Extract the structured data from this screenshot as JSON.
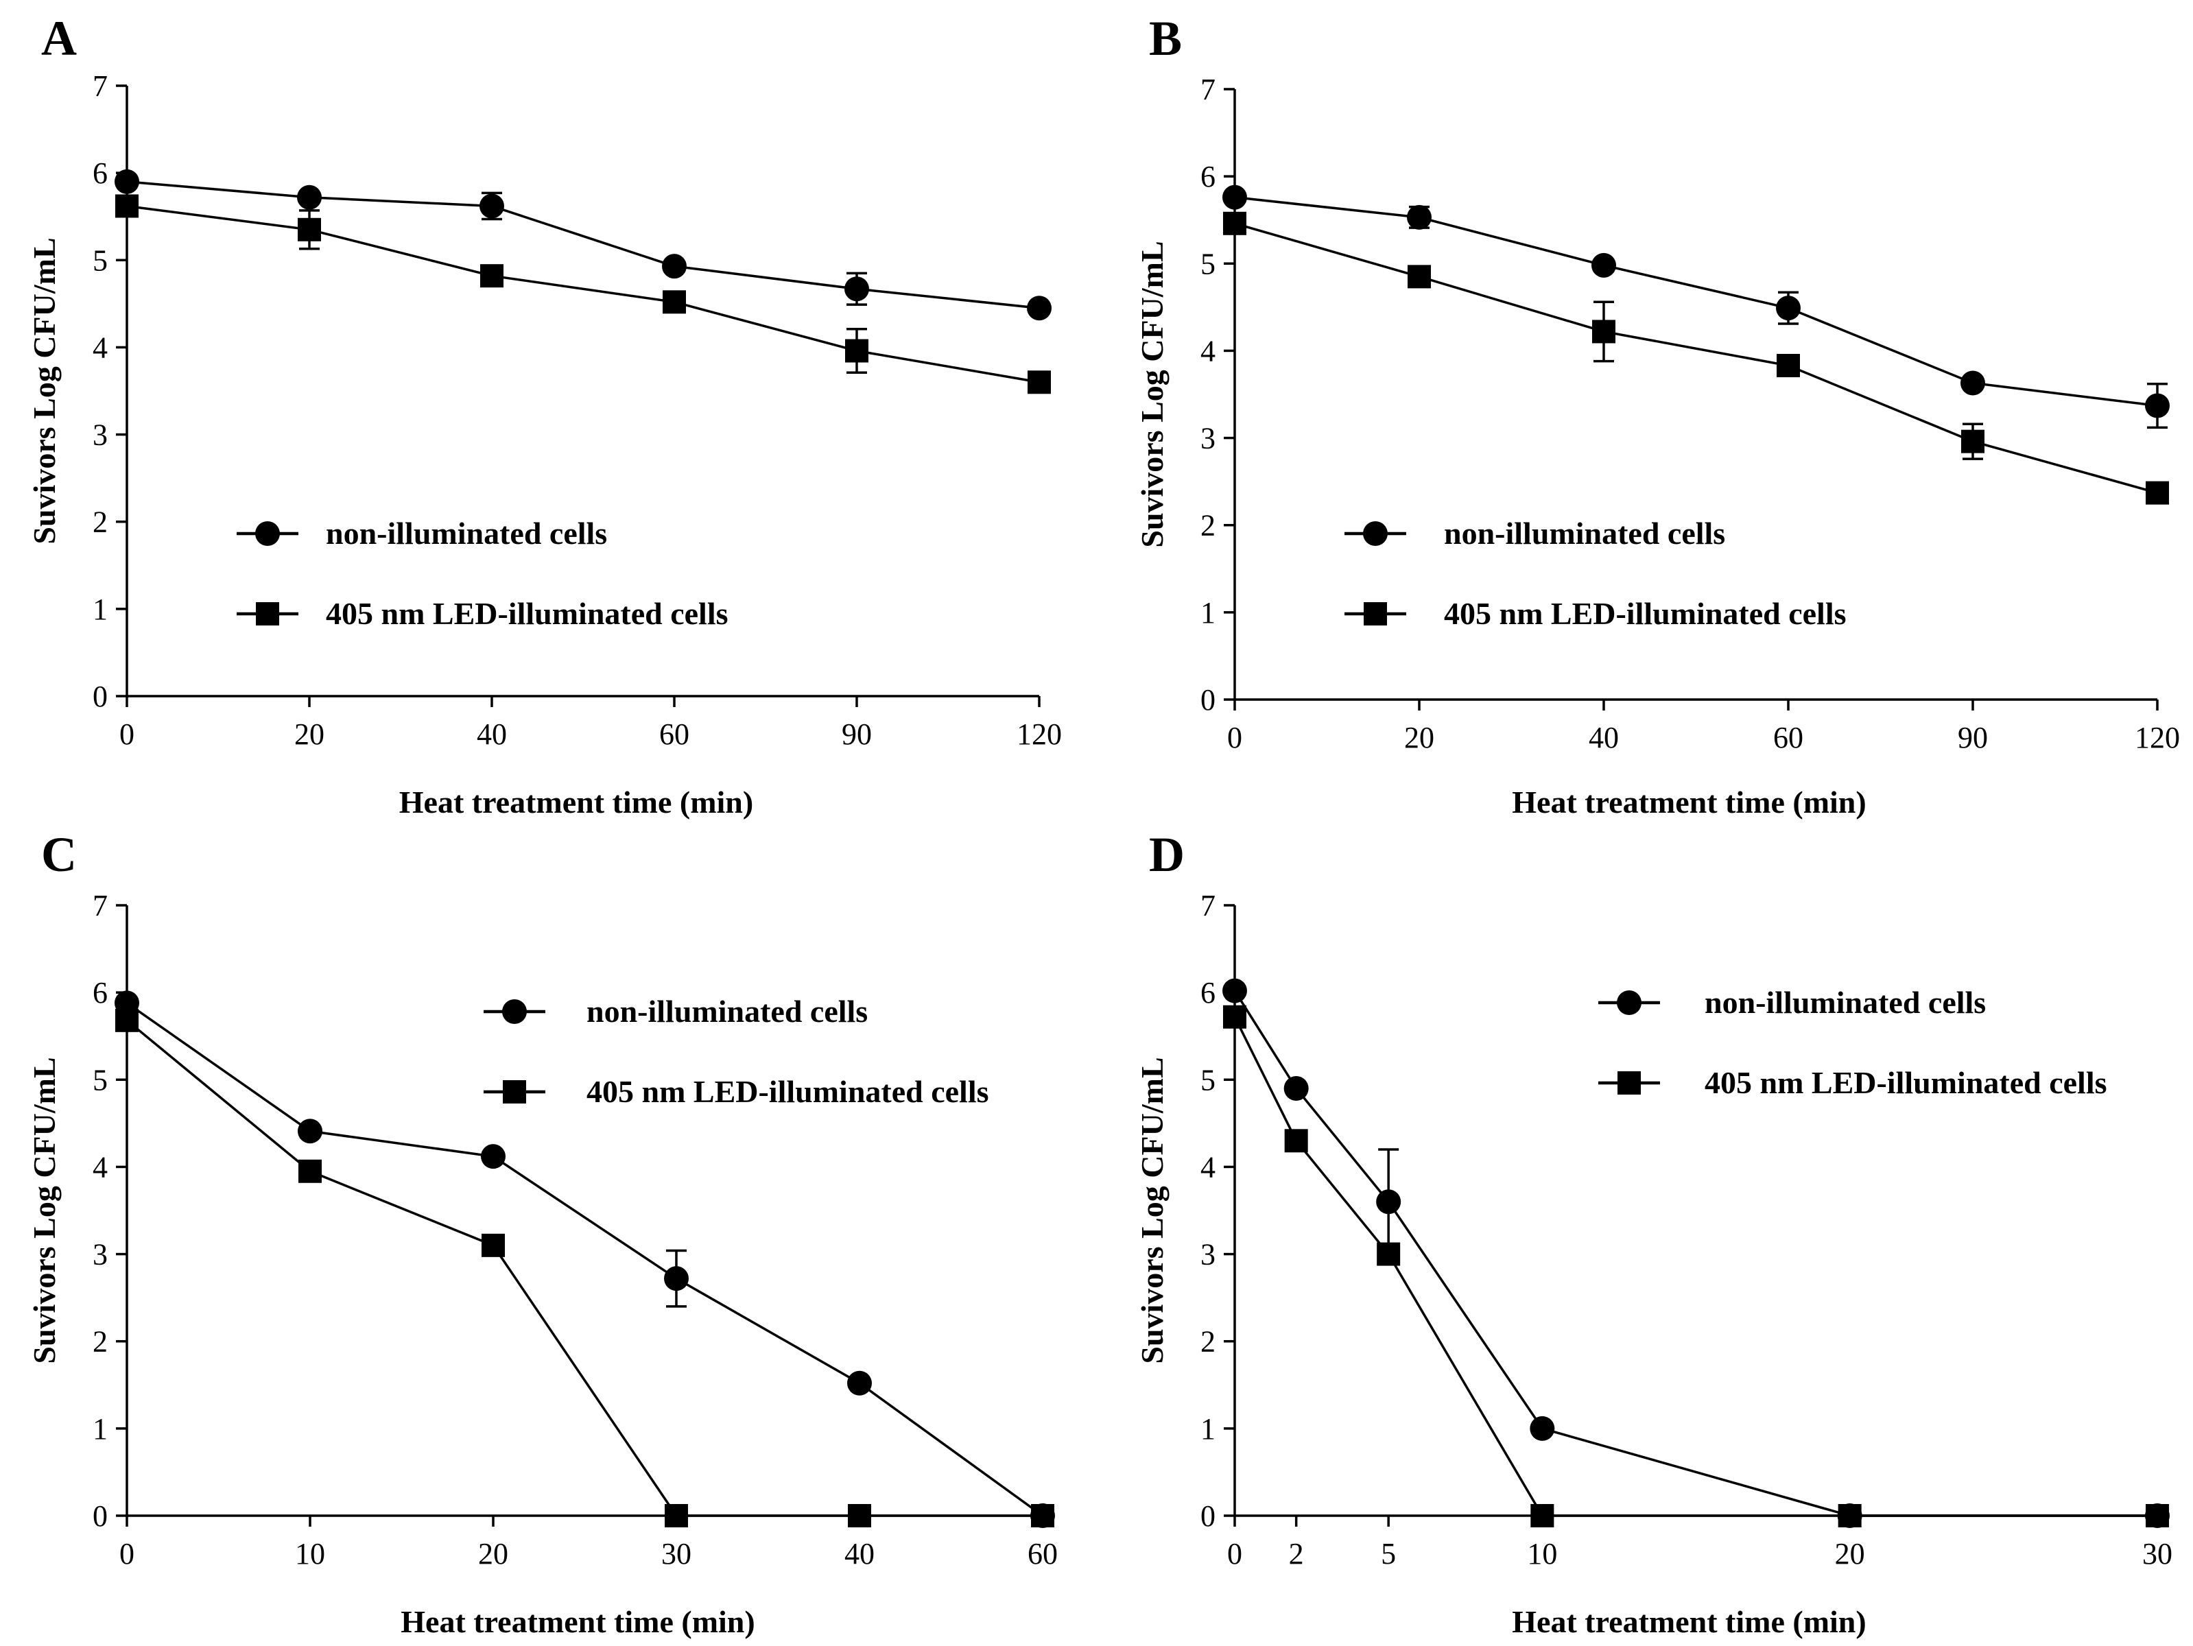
{
  "chart_data": [
    {
      "panel": "A",
      "type": "line",
      "xlabel": "Heat treatment time (min)",
      "ylabel": "Suvivors Log CFU/mL",
      "ylim": [
        0,
        7
      ],
      "yticks": [
        "0",
        "1",
        "2",
        "3",
        "4",
        "5",
        "6",
        "7"
      ],
      "categories": [
        "0",
        "20",
        "40",
        "60",
        "90",
        "120"
      ],
      "legend_position": "lower-left",
      "series": [
        {
          "name": "non-illuminated cells",
          "marker": "circle",
          "values": [
            5.9,
            5.72,
            5.62,
            4.93,
            4.67,
            4.45
          ],
          "errors": [
            0,
            0,
            0.15,
            0,
            0.18,
            0
          ]
        },
        {
          "name": "405 nm LED-illuminated cells",
          "marker": "square",
          "values": [
            5.62,
            5.35,
            4.82,
            4.52,
            3.96,
            3.6
          ],
          "errors": [
            0,
            0.22,
            0,
            0,
            0.25,
            0
          ]
        }
      ]
    },
    {
      "panel": "B",
      "type": "line",
      "xlabel": "Heat treatment time (min)",
      "ylabel": "Suvivors Log CFU/mL",
      "ylim": [
        0,
        7
      ],
      "yticks": [
        "0",
        "1",
        "2",
        "3",
        "4",
        "5",
        "6",
        "7"
      ],
      "categories": [
        "0",
        "20",
        "40",
        "60",
        "90",
        "120"
      ],
      "legend_position": "lower-left",
      "series": [
        {
          "name": "non-illuminated cells",
          "marker": "circle",
          "values": [
            5.76,
            5.53,
            4.98,
            4.49,
            3.63,
            3.37
          ],
          "errors": [
            0,
            0.12,
            0,
            0.18,
            0,
            0.25
          ]
        },
        {
          "name": "405 nm LED-illuminated cells",
          "marker": "square",
          "values": [
            5.46,
            4.85,
            4.22,
            3.83,
            2.96,
            2.37
          ],
          "errors": [
            0,
            0,
            0.34,
            0.12,
            0.2,
            0
          ]
        }
      ]
    },
    {
      "panel": "C",
      "type": "line",
      "xlabel": "Heat treatment time (min)",
      "ylabel": "Suvivors Log CFU/mL",
      "ylim": [
        0,
        7
      ],
      "yticks": [
        "0",
        "1",
        "2",
        "3",
        "4",
        "5",
        "6",
        "7"
      ],
      "categories": [
        "0",
        "10",
        "20",
        "30",
        "40",
        "60"
      ],
      "legend_position": "upper-right",
      "series": [
        {
          "name": "non-illuminated cells",
          "marker": "circle",
          "values": [
            5.88,
            4.41,
            4.12,
            2.72,
            1.52,
            0
          ],
          "errors": [
            0,
            0,
            0,
            0.32,
            0,
            0
          ]
        },
        {
          "name": "405 nm LED-illuminated cells",
          "marker": "square",
          "values": [
            5.68,
            3.95,
            3.1,
            0,
            0,
            0
          ],
          "errors": [
            0,
            0,
            0,
            0,
            0,
            0
          ]
        }
      ]
    },
    {
      "panel": "D",
      "type": "line",
      "xlabel": "Heat treatment time (min)",
      "ylabel": "Suvivors Log CFU/mL",
      "ylim": [
        0,
        7
      ],
      "yticks": [
        "0",
        "1",
        "2",
        "3",
        "4",
        "5",
        "6",
        "7"
      ],
      "x": [
        0,
        2,
        5,
        10,
        20,
        30
      ],
      "xlim": [
        0,
        30
      ],
      "xticks": [
        "0",
        "2",
        "5",
        "10",
        "20",
        "30"
      ],
      "legend_position": "upper-right",
      "series": [
        {
          "name": "non-illuminated cells",
          "marker": "circle",
          "values": [
            6.02,
            4.9,
            3.6,
            1.0,
            0,
            0
          ],
          "errors": [
            0,
            0,
            0.6,
            0,
            0,
            0
          ]
        },
        {
          "name": "405 nm LED-illuminated cells",
          "marker": "square",
          "values": [
            5.72,
            4.3,
            3.0,
            0,
            0,
            0
          ],
          "errors": [
            0,
            0,
            0,
            0,
            0,
            0
          ]
        }
      ]
    }
  ]
}
